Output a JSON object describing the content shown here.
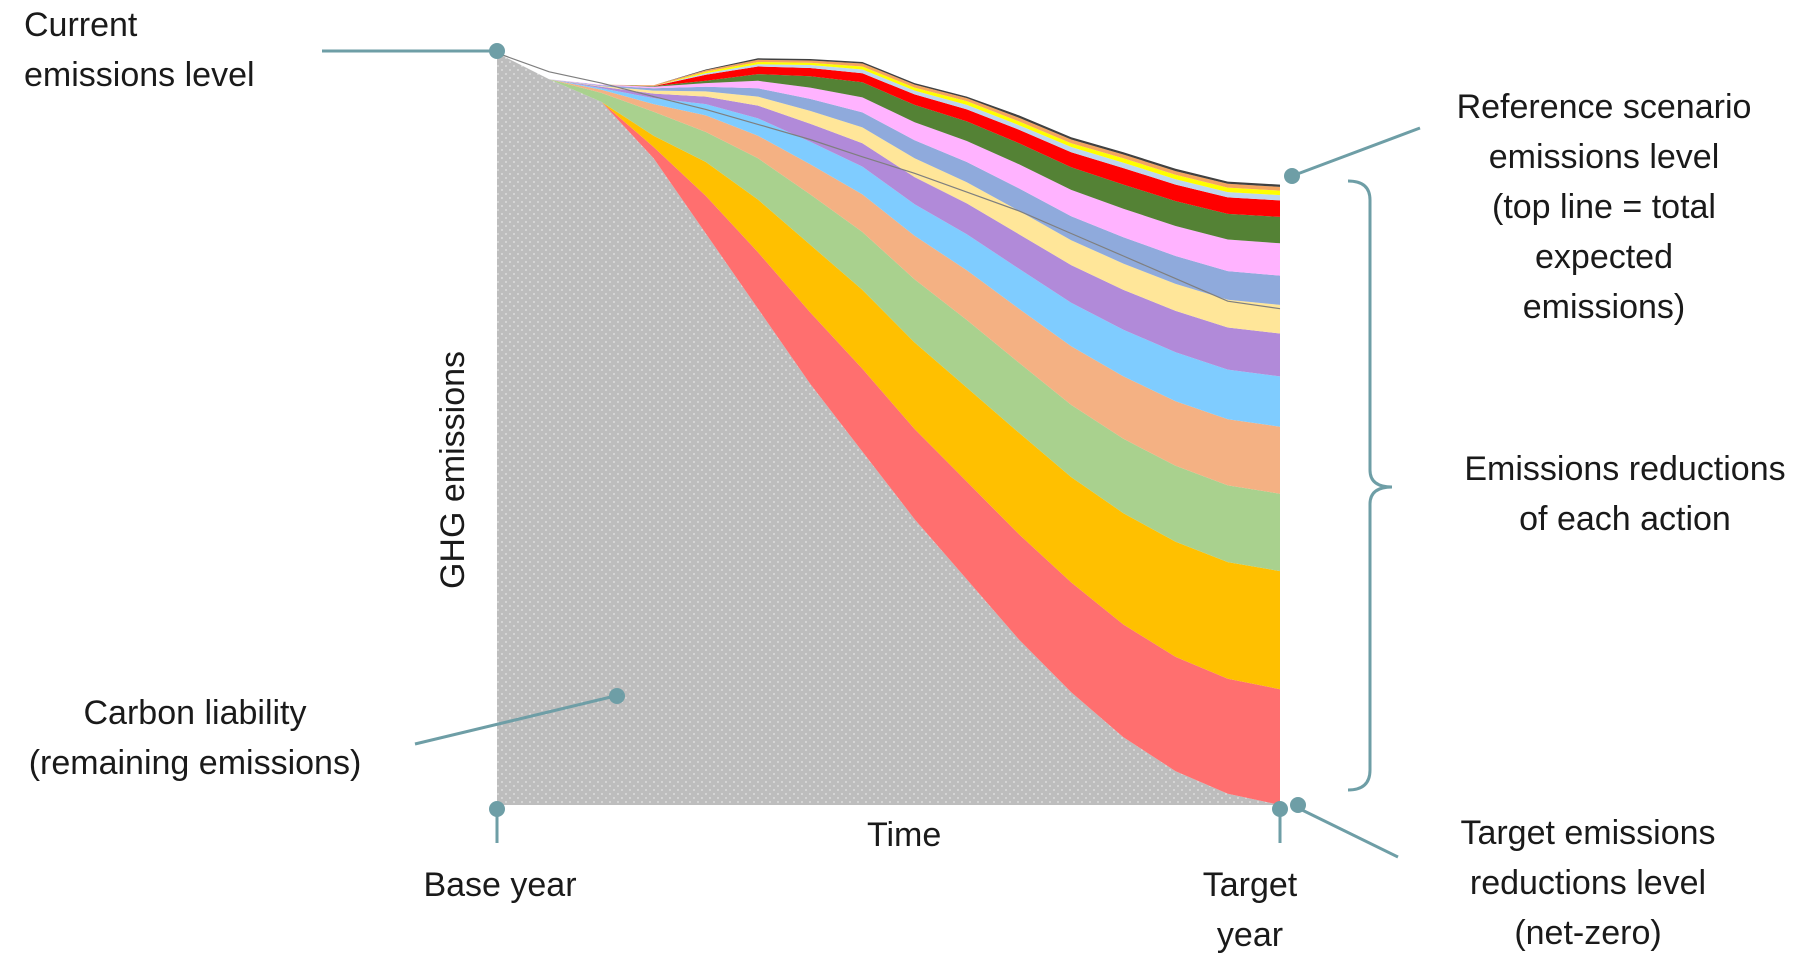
{
  "chart_data": {
    "type": "area",
    "title": "",
    "xlabel": "Time",
    "ylabel": "GHG emissions",
    "x_ticks": [
      "Base year",
      "Target year"
    ],
    "x": [
      0,
      0.0667,
      0.1333,
      0.2,
      0.2667,
      0.3333,
      0.4,
      0.4667,
      0.5333,
      0.6,
      0.6667,
      0.7333,
      0.8,
      0.8667,
      0.9333,
      1
    ],
    "ylim": [
      0,
      1
    ],
    "reference_line": [
      1,
      0.975,
      0.96,
      0.942,
      0.925,
      0.905,
      0.885,
      0.862,
      0.84,
      0.815,
      0.79,
      0.76,
      0.73,
      0.7,
      0.67,
      0.66
    ],
    "carbon_liability": [
      1,
      0.965,
      0.935,
      0.86,
      0.76,
      0.66,
      0.56,
      0.47,
      0.38,
      0.3,
      0.22,
      0.15,
      0.09,
      0.045,
      0.015,
      0
    ],
    "series": [
      {
        "color": "#ff6f6f",
        "values": [
          0,
          0,
          0,
          0.015,
          0.05,
          0.075,
          0.095,
          0.11,
          0.12,
          0.13,
          0.14,
          0.146,
          0.15,
          0.152,
          0.153,
          0.154
        ]
      },
      {
        "color": "#ffc000",
        "values": [
          0,
          0,
          0,
          0.015,
          0.045,
          0.07,
          0.09,
          0.105,
          0.115,
          0.125,
          0.135,
          0.14,
          0.148,
          0.153,
          0.155,
          0.157
        ]
      },
      {
        "color": "#a9d18e",
        "values": [
          0,
          0,
          0.012,
          0.032,
          0.04,
          0.055,
          0.067,
          0.077,
          0.084,
          0.09,
          0.093,
          0.096,
          0.099,
          0.101,
          0.102,
          0.103
        ]
      },
      {
        "color": "#f4b183",
        "values": [
          0,
          0,
          0.004,
          0.01,
          0.022,
          0.03,
          0.04,
          0.05,
          0.058,
          0.066,
          0.072,
          0.078,
          0.083,
          0.086,
          0.088,
          0.089
        ]
      },
      {
        "color": "#7fccff",
        "values": [
          0,
          0,
          0.002,
          0.008,
          0.015,
          0.023,
          0.03,
          0.037,
          0.042,
          0.048,
          0.053,
          0.058,
          0.062,
          0.065,
          0.066,
          0.067
        ]
      },
      {
        "color": "#b18ad9",
        "values": [
          0,
          0,
          0.002,
          0.006,
          0.01,
          0.017,
          0.024,
          0.031,
          0.036,
          0.041,
          0.046,
          0.05,
          0.053,
          0.055,
          0.056,
          0.057
        ]
      },
      {
        "color": "#ffe699",
        "values": [
          0,
          0,
          0.001,
          0.004,
          0.007,
          0.012,
          0.017,
          0.021,
          0.025,
          0.028,
          0.031,
          0.033,
          0.035,
          0.036,
          0.037,
          0.038
        ]
      },
      {
        "color": "#8faadc",
        "values": [
          0,
          0,
          0.001,
          0.003,
          0.006,
          0.011,
          0.016,
          0.02,
          0.024,
          0.027,
          0.03,
          0.032,
          0.035,
          0.037,
          0.038,
          0.039
        ]
      },
      {
        "color": "#ffb3ff",
        "values": [
          0,
          0,
          0.001,
          0.002,
          0.005,
          0.01,
          0.015,
          0.02,
          0.024,
          0.028,
          0.032,
          0.035,
          0.038,
          0.04,
          0.042,
          0.043
        ]
      },
      {
        "color": "#548235",
        "values": [
          0,
          0,
          0,
          0.001,
          0.003,
          0.009,
          0.015,
          0.02,
          0.023,
          0.026,
          0.028,
          0.03,
          0.032,
          0.033,
          0.034,
          0.035
        ]
      },
      {
        "color": "#ff0000",
        "values": [
          0,
          0,
          0,
          0,
          0.008,
          0.01,
          0.011,
          0.012,
          0.014,
          0.016,
          0.018,
          0.02,
          0.022,
          0.022,
          0.022,
          0.022
        ]
      },
      {
        "color": "#bdd7ee",
        "values": [
          0,
          0,
          0,
          0,
          0.002,
          0.003,
          0.004,
          0.005,
          0.005,
          0.006,
          0.006,
          0.007,
          0.007,
          0.007,
          0.007,
          0.007
        ]
      },
      {
        "color": "#ffff00",
        "values": [
          0,
          0,
          0,
          0,
          0.002,
          0.003,
          0.003,
          0.004,
          0.004,
          0.005,
          0.005,
          0.005,
          0.006,
          0.006,
          0.006,
          0.006
        ]
      },
      {
        "color": "#f4a460",
        "values": [
          0,
          0,
          0,
          0.001,
          0.002,
          0.003,
          0.003,
          0.004,
          0.004,
          0.004,
          0.005,
          0.005,
          0.005,
          0.005,
          0.005,
          0.005
        ]
      },
      {
        "color": "#404040",
        "values": [
          0,
          0,
          0,
          0,
          0.001,
          0.002,
          0.002,
          0.002,
          0.002,
          0.002,
          0.003,
          0.003,
          0.003,
          0.003,
          0.003,
          0.003
        ]
      }
    ],
    "annotations": {
      "current": "Current\nemissions level",
      "reference": "Reference scenario\nemissions level\n(top line = total\nexpected\nemissions)",
      "reductions": "Emissions reductions\nof each action",
      "liability": "Carbon liability\n(remaining emissions)",
      "target_level": "Target emissions\nreductions level\n(net-zero)"
    },
    "colors": {
      "callout": "#6e9ea6",
      "liability": "#bdbdbd"
    }
  }
}
